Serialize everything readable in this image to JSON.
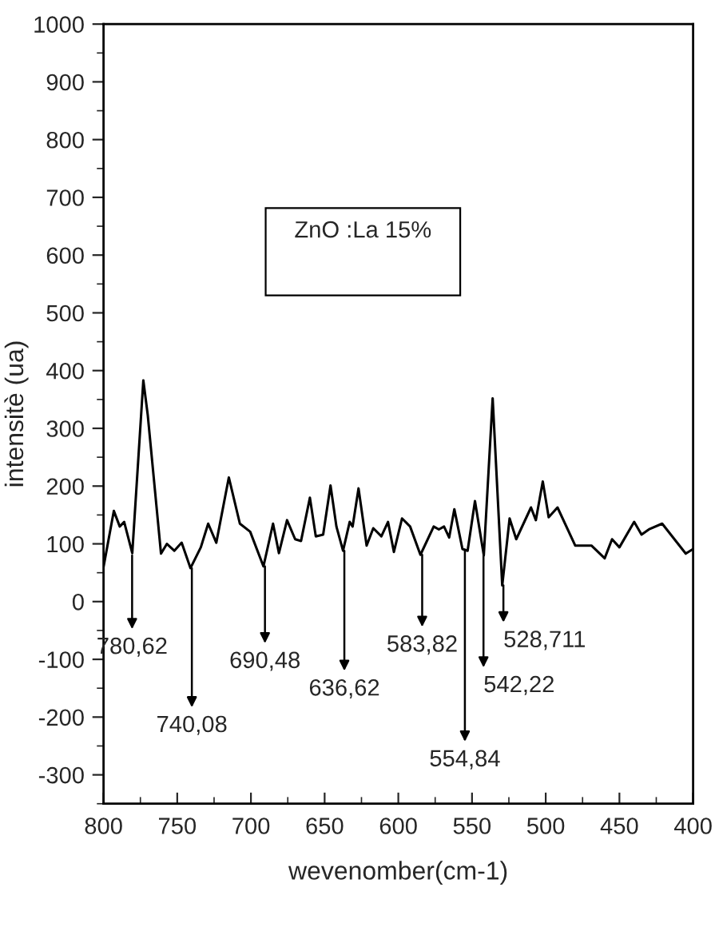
{
  "chart_data": {
    "type": "line",
    "xlabel": "wevenomber(cm-1)",
    "ylabel": "intensitè (ua)",
    "xlim": [
      800,
      400
    ],
    "xticks": [
      800,
      750,
      700,
      650,
      600,
      550,
      500,
      450,
      400
    ],
    "ylim": [
      -350,
      1000
    ],
    "yticks": [
      -300,
      -200,
      -100,
      0,
      100,
      200,
      300,
      400,
      500,
      600,
      700,
      800,
      900,
      1000
    ],
    "grid": false,
    "legend": false,
    "marker": "none",
    "line_style": "solid",
    "series": [
      {
        "color": "#000000",
        "x": [
          800,
          793,
          789,
          786,
          780.5,
          773,
          770,
          761,
          757,
          752,
          747,
          741,
          734,
          729,
          723.5,
          715,
          707.5,
          700.5,
          691.5,
          685,
          681,
          675.5,
          670,
          666,
          660,
          656,
          651,
          646,
          642,
          637.5,
          633,
          631,
          627,
          621.5,
          617,
          611.5,
          607,
          603,
          597.5,
          592,
          585,
          576,
          572.5,
          569,
          565.5,
          562,
          556.5,
          553,
          548,
          542,
          536,
          529.5,
          524.5,
          520,
          510,
          506.7,
          502,
          498,
          492,
          480,
          469,
          460,
          455,
          450,
          440,
          435,
          430,
          421,
          405,
          400
        ],
        "values": [
          60,
          157,
          130,
          138,
          84,
          383,
          323,
          83,
          100,
          88,
          102,
          58,
          94,
          135,
          102,
          215,
          135,
          121,
          61,
          135,
          84,
          141,
          108,
          105,
          180,
          113,
          116,
          201,
          130,
          88,
          138,
          130,
          196,
          97,
          127,
          113,
          138,
          86,
          144,
          130,
          81,
          130,
          125,
          130,
          111,
          160,
          91,
          88,
          174,
          80,
          352,
          28,
          144,
          108,
          163,
          141,
          208,
          146,
          163,
          97,
          97,
          75,
          108,
          94,
          138,
          116,
          125,
          135,
          83,
          91
        ]
      }
    ],
    "annotations": [
      {
        "text": "780,62",
        "x": 780.62,
        "y": 80
      },
      {
        "text": "740,08",
        "x": 740.08,
        "y": 58
      },
      {
        "text": "690,48",
        "x": 690.48,
        "y": 61
      },
      {
        "text": "636,62",
        "x": 636.62,
        "y": 88
      },
      {
        "text": "583,82",
        "x": 583.82,
        "y": 81
      },
      {
        "text": "554,84",
        "x": 554.84,
        "y": 90
      },
      {
        "text": "542,22",
        "x": 542.22,
        "y": 80
      },
      {
        "text": "528,711",
        "x": 528.711,
        "y": 28
      },
      "ZnO :La 15%"
    ]
  }
}
